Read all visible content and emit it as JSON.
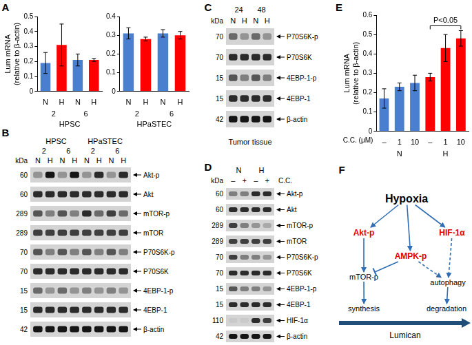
{
  "chart_data": [
    {
      "panel": "A",
      "type": "bar",
      "y_label": [
        "Lum mRNA",
        "(relative to β-actin)"
      ],
      "categories": [
        "N",
        "H",
        "N",
        "H"
      ],
      "groups": [
        "2",
        "6"
      ],
      "x_label": "HPSC",
      "values": [
        0.19,
        0.31,
        0.21,
        0.21
      ],
      "errors": [
        0.07,
        0.14,
        0.04,
        0.01
      ],
      "colors": [
        "#4a7fcf",
        "#ff0000",
        "#4a7fcf",
        "#ff0000"
      ],
      "ylim": [
        0,
        0.5
      ],
      "yticks": [
        0,
        0.1,
        0.2,
        0.3,
        0.4,
        0.5
      ],
      "grid": false
    },
    {
      "type": "bar",
      "categories": [
        "N",
        "H",
        "N",
        "H"
      ],
      "groups": [
        "2",
        "6"
      ],
      "x_label": "HPaSTEC",
      "values": [
        0.31,
        0.28,
        0.31,
        0.3
      ],
      "errors": [
        0.03,
        0.01,
        0.02,
        0.02
      ],
      "colors": [
        "#4a7fcf",
        "#ff0000",
        "#4a7fcf",
        "#ff0000"
      ],
      "ylim": [
        0,
        0.4
      ],
      "yticks": [
        0,
        0.1,
        0.2,
        0.3,
        0.4
      ],
      "grid": false
    },
    {
      "panel": "E",
      "type": "bar",
      "y_label": [
        "Lum mRNA",
        "(relative to β-actin)"
      ],
      "categories": [
        "–",
        "1",
        "10",
        "–",
        "1",
        "10"
      ],
      "groups": [
        "N",
        "H"
      ],
      "x_label": "C.C. (μM)",
      "values": [
        0.17,
        0.23,
        0.25,
        0.28,
        0.43,
        0.48
      ],
      "errors": [
        0.05,
        0.02,
        0.04,
        0.02,
        0.07,
        0.04
      ],
      "colors": [
        "#4a7fcf",
        "#4a7fcf",
        "#4a7fcf",
        "#ff0000",
        "#ff0000",
        "#ff0000"
      ],
      "ylim": [
        0,
        0.6
      ],
      "yticks": [
        0,
        0.1,
        0.2,
        0.3,
        0.4,
        0.5,
        0.6
      ],
      "grid": false,
      "annotations": [
        {
          "text": "P<0.05",
          "from": 3,
          "to": 5
        }
      ]
    }
  ],
  "blots": [
    {
      "panel": "B",
      "kda_label": "kDa",
      "groups": [
        "HPSC",
        "HPaSTEC"
      ],
      "subgroups": [
        "2",
        "6",
        "2",
        "6"
      ],
      "lanes": [
        "N",
        "H",
        "N",
        "H",
        "N",
        "H",
        "N",
        "H"
      ],
      "rows": [
        {
          "kda": 60,
          "label": "Akt-p",
          "intensity": [
            0.3,
            0.9,
            0.3,
            0.9,
            0.3,
            0.8,
            0.3,
            0.8
          ]
        },
        {
          "kda": 60,
          "label": "Akt",
          "intensity": [
            0.8,
            0.8,
            0.8,
            0.8,
            0.8,
            0.8,
            0.8,
            0.8
          ]
        },
        {
          "kda": 289,
          "label": "mTOR-p",
          "intensity": [
            0.6,
            0.4,
            0.6,
            0.4,
            0.8,
            0.5,
            0.7,
            0.5
          ]
        },
        {
          "kda": 289,
          "label": "mTOR",
          "intensity": [
            0.7,
            0.7,
            0.7,
            0.7,
            0.7,
            0.7,
            0.7,
            0.7
          ]
        },
        {
          "kda": 70,
          "label": "P70S6K-p",
          "intensity": [
            0.6,
            0.4,
            0.6,
            0.4,
            0.6,
            0.4,
            0.6,
            0.4
          ]
        },
        {
          "kda": 70,
          "label": "P70S6K",
          "intensity": [
            0.8,
            0.8,
            0.8,
            0.8,
            0.8,
            0.8,
            0.8,
            0.8
          ]
        },
        {
          "kda": 15,
          "label": "4EBP-1-p",
          "intensity": [
            0.5,
            0.3,
            0.5,
            0.3,
            0.4,
            0.3,
            0.4,
            0.3
          ]
        },
        {
          "kda": 15,
          "label": "4EBP-1",
          "intensity": [
            0.8,
            0.8,
            0.8,
            0.8,
            0.8,
            0.8,
            0.8,
            0.8
          ]
        },
        {
          "kda": 42,
          "label": "β-actin",
          "intensity": [
            0.9,
            0.9,
            0.9,
            0.9,
            0.9,
            0.9,
            0.9,
            0.9
          ]
        }
      ]
    },
    {
      "panel": "C",
      "kda_label": "kDa",
      "groups": [
        "24",
        "48"
      ],
      "lanes": [
        "N",
        "H",
        "N",
        "H"
      ],
      "rows": [
        {
          "kda": 70,
          "label": "P70S6K-p",
          "intensity": [
            0.5,
            0.3,
            0.5,
            0.3
          ]
        },
        {
          "kda": 70,
          "label": "P70S6K",
          "intensity": [
            0.8,
            0.8,
            0.8,
            0.8
          ]
        },
        {
          "kda": 15,
          "label": "4EBP-1-p",
          "intensity": [
            0.6,
            0.4,
            0.6,
            0.4
          ]
        },
        {
          "kda": 15,
          "label": "4EBP-1",
          "intensity": [
            0.8,
            0.8,
            0.8,
            0.8
          ]
        },
        {
          "kda": 42,
          "label": "β-actin",
          "intensity": [
            0.9,
            0.9,
            0.9,
            0.9
          ]
        }
      ],
      "footer": "Tumor tissue"
    },
    {
      "panel": "D",
      "kda_label": "kDa",
      "groups": [
        "N",
        "H"
      ],
      "lanes": [
        "–",
        "+",
        "–",
        "+"
      ],
      "lane_label": "C.C.",
      "rows": [
        {
          "kda": 60,
          "label": "Akt-p",
          "intensity": [
            0.4,
            0.4,
            0.8,
            0.8
          ]
        },
        {
          "kda": 60,
          "label": "Akt",
          "intensity": [
            0.8,
            0.8,
            0.8,
            0.8
          ]
        },
        {
          "kda": 289,
          "label": "mTOR-p",
          "intensity": [
            0.7,
            0.4,
            0.3,
            0.2
          ]
        },
        {
          "kda": 289,
          "label": "mTOR",
          "intensity": [
            0.7,
            0.7,
            0.7,
            0.7
          ]
        },
        {
          "kda": 70,
          "label": "P70S6K-p",
          "intensity": [
            0.7,
            0.4,
            0.4,
            0.3
          ]
        },
        {
          "kda": 70,
          "label": "P70S6K",
          "intensity": [
            0.8,
            0.8,
            0.8,
            0.8
          ]
        },
        {
          "kda": 15,
          "label": "4EBP-1-p",
          "intensity": [
            0.6,
            0.4,
            0.4,
            0.3
          ]
        },
        {
          "kda": 15,
          "label": "4EBP-1",
          "intensity": [
            0.8,
            0.8,
            0.8,
            0.8
          ]
        },
        {
          "kda": 110,
          "label": "HIF-1α",
          "intensity": [
            0.05,
            0.05,
            0.8,
            0.7
          ]
        },
        {
          "kda": 42,
          "label": "β-actin",
          "intensity": [
            0.9,
            0.9,
            0.9,
            0.9
          ]
        }
      ]
    }
  ],
  "diagram": {
    "panel": "F",
    "nodes": [
      {
        "label": "Hypoxia",
        "color": "black"
      },
      {
        "label": "Akt-p",
        "color": "red"
      },
      {
        "label": "AMPK-p",
        "color": "red"
      },
      {
        "label": "HIF-1α",
        "color": "red"
      },
      {
        "label": "mTOR-p",
        "color": "black"
      },
      {
        "label": "autophagy",
        "color": "black"
      },
      {
        "label": "synthesis",
        "color": "black"
      },
      {
        "label": "degradation",
        "color": "black"
      }
    ],
    "edges": [
      {
        "from": "Hypoxia",
        "to": "Akt-p",
        "style": "solid"
      },
      {
        "from": "Hypoxia",
        "to": "AMPK-p",
        "style": "solid"
      },
      {
        "from": "Hypoxia",
        "to": "HIF-1α",
        "style": "solid"
      },
      {
        "from": "Akt-p",
        "to": "mTOR-p",
        "style": "solid"
      },
      {
        "from": "AMPK-p",
        "to": "mTOR-p",
        "style": "inhibit"
      },
      {
        "from": "AMPK-p",
        "to": "autophagy",
        "style": "dashed"
      },
      {
        "from": "HIF-1α",
        "to": "autophagy",
        "style": "dashed"
      },
      {
        "from": "mTOR-p",
        "to": "synthesis",
        "style": "solid"
      },
      {
        "from": "autophagy",
        "to": "degradation",
        "style": "solid"
      }
    ],
    "bar_label": "Lumican"
  }
}
